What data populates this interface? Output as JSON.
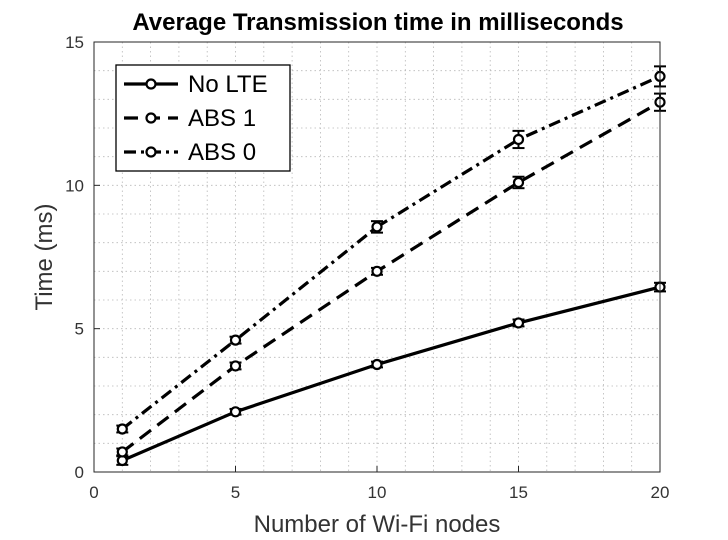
{
  "chart_data": {
    "type": "line",
    "title": "Average Transmission time in milliseconds",
    "xlabel": "Number of Wi-Fi nodes",
    "ylabel": "Time (ms)",
    "xlim": [
      0,
      20
    ],
    "ylim": [
      0,
      15
    ],
    "xticks": [
      0,
      5,
      10,
      15,
      20
    ],
    "yticks": [
      0,
      5,
      10,
      15
    ],
    "grid": true,
    "legend_position": "top-left",
    "x": [
      1,
      5,
      10,
      15,
      20
    ],
    "series": [
      {
        "name": "No LTE",
        "dash": "solid",
        "values": [
          0.4,
          2.1,
          3.75,
          5.2,
          6.45
        ],
        "errors": [
          0.15,
          0.1,
          0.1,
          0.12,
          0.15
        ]
      },
      {
        "name": "ABS 1",
        "dash": "dashed",
        "values": [
          0.7,
          3.7,
          7.0,
          10.1,
          12.9
        ],
        "errors": [
          0.12,
          0.12,
          0.12,
          0.2,
          0.3
        ]
      },
      {
        "name": "ABS 0",
        "dash": "dashdot",
        "values": [
          1.5,
          4.6,
          8.55,
          11.6,
          13.8
        ],
        "errors": [
          0.12,
          0.12,
          0.2,
          0.3,
          0.35
        ]
      }
    ]
  }
}
